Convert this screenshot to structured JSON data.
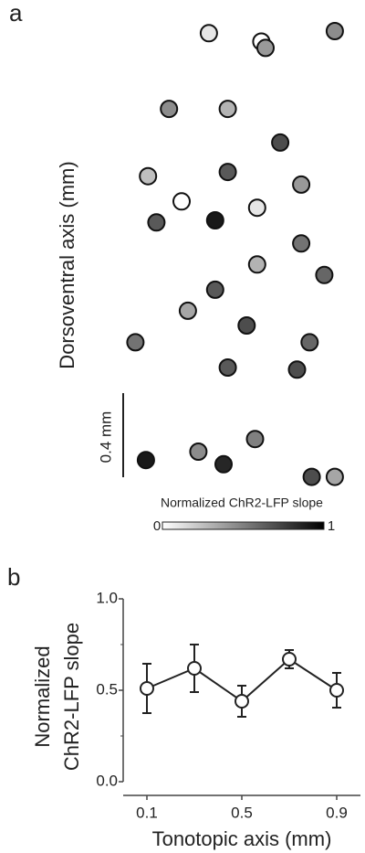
{
  "chart_data": [
    {
      "type": "scatter",
      "panel": "a",
      "ylabel": "Dorsoventral axis (mm)",
      "x": [
        0.43,
        0.68,
        0.7,
        1.03,
        0.24,
        0.52,
        0.77,
        0.14,
        0.52,
        0.87,
        0.3,
        0.66,
        0.18,
        0.46,
        0.87,
        0.66,
        0.98,
        0.46,
        0.33,
        0.61,
        0.08,
        0.91,
        0.52,
        0.85,
        0.65,
        0.38,
        0.13,
        0.5,
        0.92,
        1.03
      ],
      "y": [
        2.19,
        2.15,
        2.12,
        2.2,
        1.83,
        1.83,
        1.67,
        1.51,
        1.53,
        1.47,
        1.39,
        1.36,
        1.29,
        1.3,
        1.19,
        1.09,
        1.04,
        0.97,
        0.87,
        0.8,
        0.72,
        0.72,
        0.6,
        0.59,
        0.26,
        0.2,
        0.16,
        0.14,
        0.08,
        0.08
      ],
      "values": [
        0.1,
        0.0,
        0.4,
        0.45,
        0.45,
        0.3,
        0.7,
        0.25,
        0.65,
        0.4,
        0.0,
        0.1,
        0.65,
        0.9,
        0.55,
        0.3,
        0.6,
        0.65,
        0.35,
        0.7,
        0.55,
        0.6,
        0.65,
        0.7,
        0.5,
        0.45,
        0.9,
        0.85,
        0.7,
        0.35
      ],
      "scale_bar": {
        "value": 0.4,
        "label": "0.4 mm"
      },
      "colorbar": {
        "label": "Normalized ChR2-LFP slope",
        "clim": [
          0,
          1
        ],
        "ticks": [
          0,
          1
        ]
      }
    },
    {
      "type": "line",
      "panel": "b",
      "ylabel": [
        "Normalized",
        "ChR2-LFP slope"
      ],
      "xlabel": "Tonotopic axis (mm)",
      "x": [
        0.1,
        0.3,
        0.5,
        0.7,
        0.9
      ],
      "values": [
        0.51,
        0.62,
        0.44,
        0.67,
        0.5
      ],
      "errors": [
        0.135,
        0.13,
        0.085,
        0.05,
        0.095
      ],
      "xlim": [
        0,
        1
      ],
      "xticks": [
        0.1,
        0.5,
        0.9
      ],
      "ylim": [
        0,
        1
      ],
      "yticks": [
        {
          "value": 0,
          "label": "0.0"
        },
        0.5,
        {
          "value": 1,
          "label": "1.0"
        }
      ],
      "yminorticks": [
        0.25,
        0.75
      ]
    }
  ]
}
